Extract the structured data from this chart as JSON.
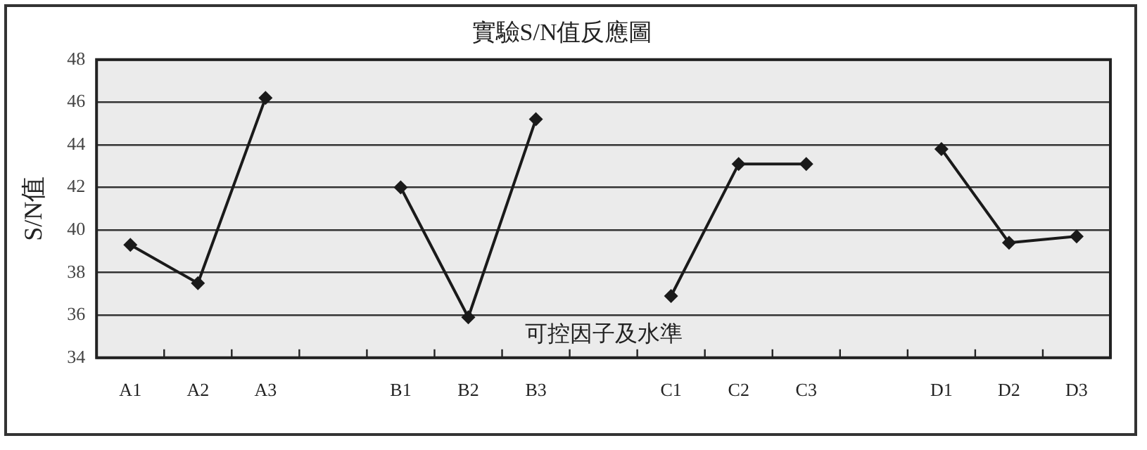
{
  "chart_data": {
    "type": "line",
    "title": "實驗S/N值反應圖",
    "xlabel": "可控因子及水準",
    "ylabel": "S/N值",
    "categories": [
      "A1",
      "A2",
      "A3",
      null,
      "B1",
      "B2",
      "B3",
      null,
      "C1",
      "C2",
      "C3",
      null,
      "D1",
      "D2",
      "D3"
    ],
    "values": [
      39.3,
      37.5,
      46.2,
      null,
      42.0,
      35.9,
      45.2,
      null,
      36.9,
      43.1,
      43.1,
      null,
      43.8,
      39.4,
      39.7
    ],
    "color": "#1a1a1a",
    "marker": "diamond",
    "line_style": "solid",
    "ylim": [
      34,
      48
    ],
    "yticks": [
      34,
      36,
      38,
      40,
      42,
      44,
      46,
      48
    ],
    "grid": "y",
    "legend": false
  }
}
